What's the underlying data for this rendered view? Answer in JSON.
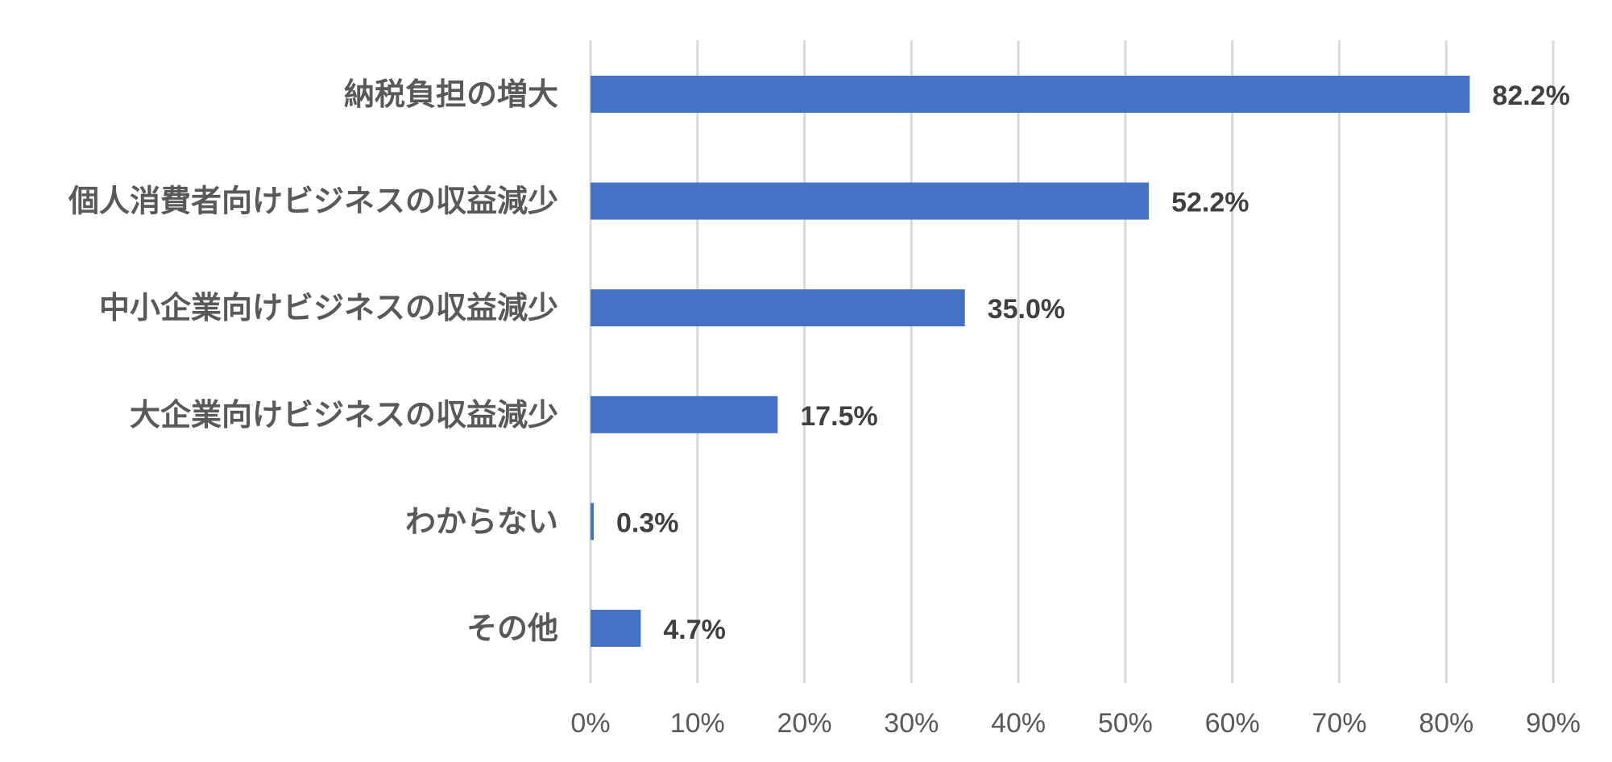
{
  "chart_data": {
    "type": "bar",
    "orientation": "horizontal",
    "categories": [
      "納税負担の増大",
      "個人消費者向けビジネスの収益減少",
      "中小企業向けビジネスの収益減少",
      "大企業向けビジネスの収益減少",
      "わからない",
      "その他"
    ],
    "values": [
      82.2,
      52.2,
      35.0,
      17.5,
      0.3,
      4.7
    ],
    "data_labels": [
      "82.2%",
      "52.2%",
      "35.0%",
      "17.5%",
      "0.3%",
      "4.7%"
    ],
    "xlim": [
      0,
      90
    ],
    "ticks": [
      0,
      10,
      20,
      30,
      40,
      50,
      60,
      70,
      80,
      90
    ],
    "tick_labels": [
      "0%",
      "10%",
      "20%",
      "30%",
      "40%",
      "50%",
      "60%",
      "70%",
      "80%",
      "90%"
    ],
    "title": "",
    "xlabel": "",
    "ylabel": "",
    "grid": "vertical",
    "legend": "none",
    "bar_color": "#4472c4",
    "grid_color": "#d9d9d9"
  }
}
